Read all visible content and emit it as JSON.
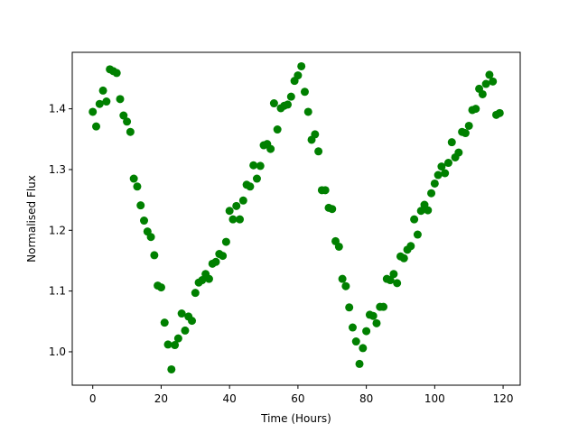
{
  "chart_data": {
    "type": "scatter",
    "title": "",
    "xlabel": "Time (Hours)",
    "ylabel": "Normalised Flux",
    "xlim": [
      -6,
      125
    ],
    "ylim": [
      0.945,
      1.493
    ],
    "xticks": [
      0,
      20,
      40,
      60,
      80,
      100,
      120
    ],
    "yticks": [
      1.0,
      1.1,
      1.2,
      1.3,
      1.4
    ],
    "xtick_labels": [
      "0",
      "20",
      "40",
      "60",
      "80",
      "100",
      "120"
    ],
    "ytick_labels": [
      "1.0",
      "1.1",
      "1.2",
      "1.3",
      "1.4"
    ],
    "grid": false,
    "marker_color": "#008000",
    "series": [
      {
        "x": [
          0,
          1,
          2,
          3,
          4,
          5,
          6,
          7,
          8,
          9,
          10,
          11,
          12,
          13,
          14,
          15,
          16,
          17,
          18,
          19,
          20,
          21,
          22,
          23,
          24,
          25,
          26,
          27,
          28,
          29,
          30,
          31,
          32,
          33,
          34,
          35,
          36,
          37,
          38,
          39,
          40,
          41,
          42,
          43,
          44,
          45,
          46,
          47,
          48,
          49,
          50,
          51,
          52,
          53,
          54,
          55,
          56,
          57,
          58,
          59,
          60,
          61,
          62,
          63,
          64,
          65,
          66,
          67,
          68,
          69,
          70,
          71,
          72,
          73,
          74,
          75,
          76,
          77,
          78,
          79,
          80,
          81,
          82,
          83,
          84,
          85,
          86,
          87,
          88,
          89,
          90,
          91,
          92,
          93,
          94,
          95,
          96,
          97,
          98,
          99,
          100,
          101,
          102,
          103,
          104,
          105,
          106,
          107,
          108,
          109,
          110,
          111,
          112,
          113,
          114,
          115,
          116,
          117,
          118,
          119
        ],
        "y": [
          1.395,
          1.371,
          1.408,
          1.43,
          1.412,
          1.465,
          1.462,
          1.459,
          1.416,
          1.389,
          1.379,
          1.362,
          1.285,
          1.272,
          1.241,
          1.216,
          1.198,
          1.189,
          1.159,
          1.109,
          1.106,
          1.048,
          1.012,
          0.971,
          1.011,
          1.022,
          1.063,
          1.035,
          1.058,
          1.051,
          1.097,
          1.114,
          1.118,
          1.128,
          1.12,
          1.145,
          1.148,
          1.161,
          1.158,
          1.181,
          1.232,
          1.218,
          1.24,
          1.218,
          1.249,
          1.275,
          1.272,
          1.307,
          1.285,
          1.306,
          1.34,
          1.342,
          1.334,
          1.409,
          1.366,
          1.401,
          1.405,
          1.407,
          1.42,
          1.446,
          1.455,
          1.47,
          1.428,
          1.395,
          1.349,
          1.358,
          1.33,
          1.266,
          1.266,
          1.237,
          1.235,
          1.182,
          1.173,
          1.12,
          1.108,
          1.073,
          1.04,
          1.017,
          0.98,
          1.006,
          1.034,
          1.061,
          1.059,
          1.047,
          1.074,
          1.074,
          1.12,
          1.118,
          1.128,
          1.113,
          1.157,
          1.154,
          1.168,
          1.174,
          1.218,
          1.193,
          1.232,
          1.242,
          1.233,
          1.261,
          1.277,
          1.291,
          1.305,
          1.294,
          1.311,
          1.345,
          1.32,
          1.328,
          1.362,
          1.36,
          1.372,
          1.398,
          1.4,
          1.433,
          1.424,
          1.441,
          1.456,
          1.445,
          1.39,
          1.393
        ]
      }
    ]
  }
}
